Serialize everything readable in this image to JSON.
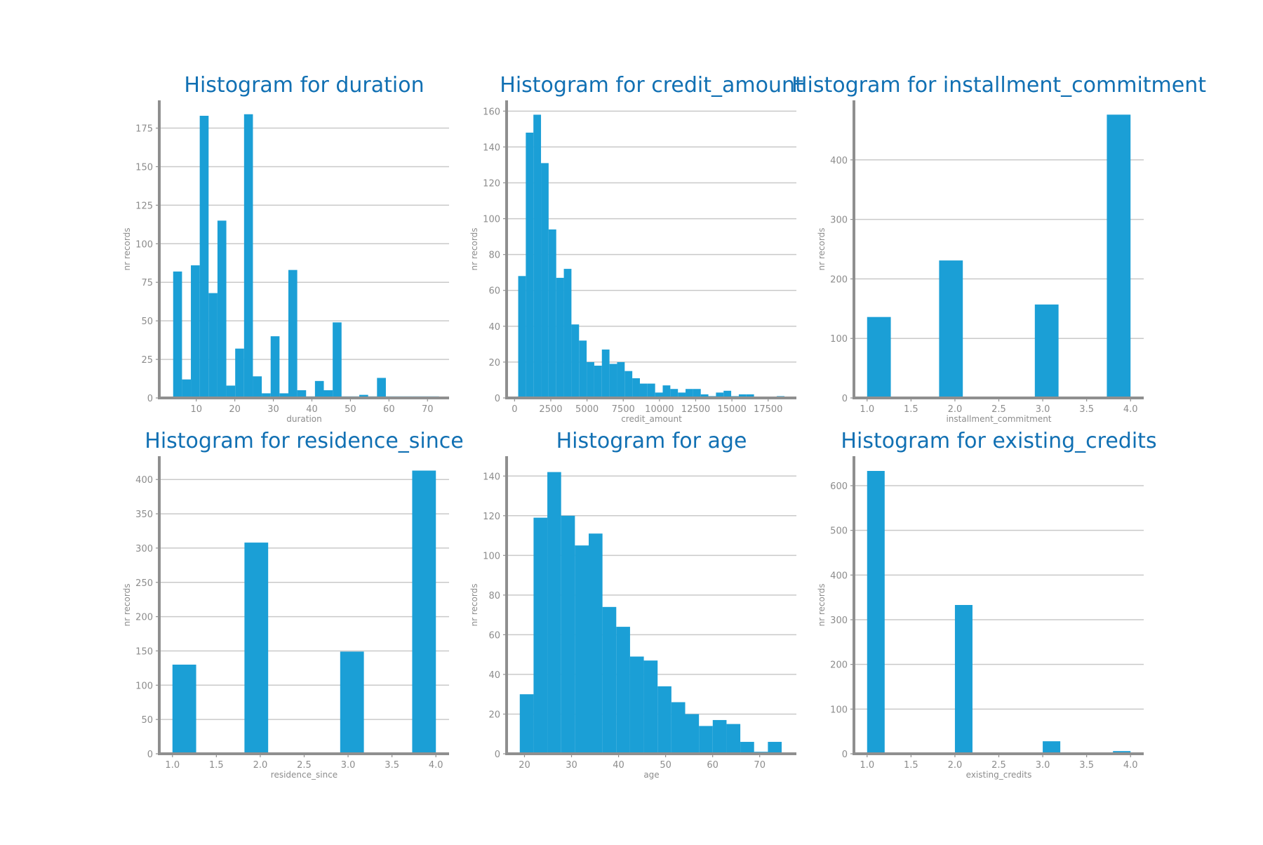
{
  "colors": {
    "bar": "#1b9fd6",
    "title": "#1170b3",
    "text": "#8c8c8c",
    "grid": "#c9c9c9",
    "spine": "#8f8f8f"
  },
  "chart_data": [
    {
      "type": "bar",
      "title": "Histogram for duration",
      "xlabel": "duration",
      "ylabel": "nr records",
      "xlim": [
        0.4,
        75.6
      ],
      "ylim": [
        0,
        193
      ],
      "xticks": [
        10,
        20,
        30,
        40,
        50,
        60,
        70
      ],
      "xtick_labels": [
        "10",
        "20",
        "30",
        "40",
        "50",
        "60",
        "70"
      ],
      "yticks": [
        0,
        25,
        50,
        75,
        100,
        125,
        150,
        175
      ],
      "bins": [
        {
          "x0": 4.0,
          "x1": 6.3,
          "count": 82
        },
        {
          "x0": 6.3,
          "x1": 8.6,
          "count": 12
        },
        {
          "x0": 8.6,
          "x1": 10.9,
          "count": 86
        },
        {
          "x0": 10.9,
          "x1": 13.2,
          "count": 183
        },
        {
          "x0": 13.2,
          "x1": 15.5,
          "count": 68
        },
        {
          "x0": 15.5,
          "x1": 17.8,
          "count": 115
        },
        {
          "x0": 17.8,
          "x1": 20.1,
          "count": 8
        },
        {
          "x0": 20.1,
          "x1": 22.4,
          "count": 32
        },
        {
          "x0": 22.4,
          "x1": 24.7,
          "count": 184
        },
        {
          "x0": 24.7,
          "x1": 27.0,
          "count": 14
        },
        {
          "x0": 27.0,
          "x1": 29.3,
          "count": 3
        },
        {
          "x0": 29.3,
          "x1": 31.6,
          "count": 40
        },
        {
          "x0": 31.6,
          "x1": 33.9,
          "count": 3
        },
        {
          "x0": 33.9,
          "x1": 36.2,
          "count": 83
        },
        {
          "x0": 36.2,
          "x1": 38.5,
          "count": 5
        },
        {
          "x0": 38.5,
          "x1": 40.8,
          "count": 1
        },
        {
          "x0": 40.8,
          "x1": 43.1,
          "count": 11
        },
        {
          "x0": 43.1,
          "x1": 45.4,
          "count": 5
        },
        {
          "x0": 45.4,
          "x1": 47.7,
          "count": 49
        },
        {
          "x0": 47.7,
          "x1": 50.0,
          "count": 1
        },
        {
          "x0": 50.0,
          "x1": 52.3,
          "count": 1
        },
        {
          "x0": 52.3,
          "x1": 54.6,
          "count": 2
        },
        {
          "x0": 54.6,
          "x1": 56.9,
          "count": 1
        },
        {
          "x0": 56.9,
          "x1": 59.2,
          "count": 13
        },
        {
          "x0": 59.2,
          "x1": 61.5,
          "count": 1
        },
        {
          "x0": 61.5,
          "x1": 63.8,
          "count": 1
        },
        {
          "x0": 63.8,
          "x1": 66.1,
          "count": 1
        },
        {
          "x0": 66.1,
          "x1": 68.4,
          "count": 1
        },
        {
          "x0": 68.4,
          "x1": 70.7,
          "count": 1
        },
        {
          "x0": 70.7,
          "x1": 73.0,
          "count": 1
        }
      ]
    },
    {
      "type": "bar",
      "title": "Histogram for credit_amount",
      "xlabel": "credit_amount",
      "ylabel": "nr records",
      "xlim": [
        -550,
        19450
      ],
      "ylim": [
        0,
        166
      ],
      "xticks": [
        0,
        2500,
        5000,
        7500,
        10000,
        12500,
        15000,
        17500
      ],
      "xtick_labels": [
        "0",
        "2500",
        "5000",
        "7500",
        "10000",
        "12500",
        "15000",
        "17500"
      ],
      "yticks": [
        0,
        20,
        40,
        60,
        80,
        100,
        120,
        140,
        160
      ],
      "bins": [
        {
          "x0": 250,
          "x1": 775,
          "count": 68
        },
        {
          "x0": 775,
          "x1": 1300,
          "count": 148
        },
        {
          "x0": 1300,
          "x1": 1825,
          "count": 158
        },
        {
          "x0": 1825,
          "x1": 2350,
          "count": 131
        },
        {
          "x0": 2350,
          "x1": 2875,
          "count": 94
        },
        {
          "x0": 2875,
          "x1": 3400,
          "count": 67
        },
        {
          "x0": 3400,
          "x1": 3925,
          "count": 72
        },
        {
          "x0": 3925,
          "x1": 4450,
          "count": 41
        },
        {
          "x0": 4450,
          "x1": 4975,
          "count": 32
        },
        {
          "x0": 4975,
          "x1": 5500,
          "count": 20
        },
        {
          "x0": 5500,
          "x1": 6025,
          "count": 18
        },
        {
          "x0": 6025,
          "x1": 6550,
          "count": 27
        },
        {
          "x0": 6550,
          "x1": 7075,
          "count": 19
        },
        {
          "x0": 7075,
          "x1": 7600,
          "count": 20
        },
        {
          "x0": 7600,
          "x1": 8125,
          "count": 15
        },
        {
          "x0": 8125,
          "x1": 8650,
          "count": 11
        },
        {
          "x0": 8650,
          "x1": 9175,
          "count": 8
        },
        {
          "x0": 9175,
          "x1": 9700,
          "count": 8
        },
        {
          "x0": 9700,
          "x1": 10225,
          "count": 3
        },
        {
          "x0": 10225,
          "x1": 10750,
          "count": 7
        },
        {
          "x0": 10750,
          "x1": 11275,
          "count": 5
        },
        {
          "x0": 11275,
          "x1": 11800,
          "count": 3
        },
        {
          "x0": 11800,
          "x1": 12325,
          "count": 5
        },
        {
          "x0": 12325,
          "x1": 12850,
          "count": 5
        },
        {
          "x0": 12850,
          "x1": 13375,
          "count": 2
        },
        {
          "x0": 13375,
          "x1": 13900,
          "count": 1
        },
        {
          "x0": 13900,
          "x1": 14425,
          "count": 3
        },
        {
          "x0": 14425,
          "x1": 14950,
          "count": 4
        },
        {
          "x0": 14950,
          "x1": 15475,
          "count": 1
        },
        {
          "x0": 15475,
          "x1": 16000,
          "count": 2
        },
        {
          "x0": 16000,
          "x1": 16525,
          "count": 2
        },
        {
          "x0": 16525,
          "x1": 17050,
          "count": 0
        },
        {
          "x0": 17050,
          "x1": 17575,
          "count": 0
        },
        {
          "x0": 17575,
          "x1": 18100,
          "count": 0
        },
        {
          "x0": 18100,
          "x1": 18625,
          "count": 1
        }
      ]
    },
    {
      "type": "bar",
      "title": "Histogram for installment_commitment",
      "xlabel": "installment_commitment",
      "ylabel": "nr records",
      "xlim": [
        0.85,
        4.15
      ],
      "ylim": [
        0,
        500
      ],
      "xticks": [
        1.0,
        1.5,
        2.0,
        2.5,
        3.0,
        3.5,
        4.0
      ],
      "xtick_labels": [
        "1.0",
        "1.5",
        "2.0",
        "2.5",
        "3.0",
        "3.5",
        "4.0"
      ],
      "yticks": [
        0,
        100,
        200,
        300,
        400
      ],
      "bins": [
        {
          "x0": 1.0,
          "x1": 1.27,
          "count": 136
        },
        {
          "x0": 1.82,
          "x1": 2.09,
          "count": 231
        },
        {
          "x0": 2.91,
          "x1": 3.18,
          "count": 157
        },
        {
          "x0": 3.73,
          "x1": 4.0,
          "count": 476
        }
      ]
    },
    {
      "type": "bar",
      "title": "Histogram for residence_since",
      "xlabel": "residence_since",
      "ylabel": "nr records",
      "xlim": [
        0.85,
        4.15
      ],
      "ylim": [
        0,
        434
      ],
      "xticks": [
        1.0,
        1.5,
        2.0,
        2.5,
        3.0,
        3.5,
        4.0
      ],
      "xtick_labels": [
        "1.0",
        "1.5",
        "2.0",
        "2.5",
        "3.0",
        "3.5",
        "4.0"
      ],
      "yticks": [
        0,
        50,
        100,
        150,
        200,
        250,
        300,
        350,
        400
      ],
      "bins": [
        {
          "x0": 1.0,
          "x1": 1.27,
          "count": 130
        },
        {
          "x0": 1.82,
          "x1": 2.09,
          "count": 308
        },
        {
          "x0": 2.91,
          "x1": 3.18,
          "count": 149
        },
        {
          "x0": 3.73,
          "x1": 4.0,
          "count": 413
        }
      ]
    },
    {
      "type": "bar",
      "title": "Histogram for age",
      "xlabel": "age",
      "ylabel": "nr records",
      "xlim": [
        16.2,
        77.8
      ],
      "ylim": [
        0,
        150
      ],
      "xticks": [
        20,
        30,
        40,
        50,
        60,
        70
      ],
      "xtick_labels": [
        "20",
        "30",
        "40",
        "50",
        "60",
        "70"
      ],
      "yticks": [
        0,
        20,
        40,
        60,
        80,
        100,
        120,
        140
      ],
      "bins": [
        {
          "x0": 19.0,
          "x1": 21.93,
          "count": 30
        },
        {
          "x0": 21.93,
          "x1": 24.86,
          "count": 119
        },
        {
          "x0": 24.86,
          "x1": 27.79,
          "count": 142
        },
        {
          "x0": 27.79,
          "x1": 30.72,
          "count": 120
        },
        {
          "x0": 30.72,
          "x1": 33.65,
          "count": 105
        },
        {
          "x0": 33.65,
          "x1": 36.58,
          "count": 111
        },
        {
          "x0": 36.58,
          "x1": 39.51,
          "count": 74
        },
        {
          "x0": 39.51,
          "x1": 42.44,
          "count": 64
        },
        {
          "x0": 42.44,
          "x1": 45.37,
          "count": 49
        },
        {
          "x0": 45.37,
          "x1": 48.3,
          "count": 47
        },
        {
          "x0": 48.3,
          "x1": 51.23,
          "count": 34
        },
        {
          "x0": 51.23,
          "x1": 54.16,
          "count": 26
        },
        {
          "x0": 54.16,
          "x1": 57.09,
          "count": 20
        },
        {
          "x0": 57.09,
          "x1": 60.02,
          "count": 14
        },
        {
          "x0": 60.02,
          "x1": 62.95,
          "count": 17
        },
        {
          "x0": 62.95,
          "x1": 65.88,
          "count": 15
        },
        {
          "x0": 65.88,
          "x1": 68.81,
          "count": 6
        },
        {
          "x0": 68.81,
          "x1": 71.74,
          "count": 1
        },
        {
          "x0": 71.74,
          "x1": 74.67,
          "count": 6
        }
      ]
    },
    {
      "type": "bar",
      "title": "Histogram for existing_credits",
      "xlabel": "existing_credits",
      "ylabel": "nr records",
      "xlim": [
        0.85,
        4.15
      ],
      "ylim": [
        0,
        666
      ],
      "xticks": [
        1.0,
        1.5,
        2.0,
        2.5,
        3.0,
        3.5,
        4.0
      ],
      "xtick_labels": [
        "1.0",
        "1.5",
        "2.0",
        "2.5",
        "3.0",
        "3.5",
        "4.0"
      ],
      "yticks": [
        0,
        100,
        200,
        300,
        400,
        500,
        600
      ],
      "bins": [
        {
          "x0": 1.0,
          "x1": 1.2,
          "count": 633
        },
        {
          "x0": 2.0,
          "x1": 2.2,
          "count": 333
        },
        {
          "x0": 3.0,
          "x1": 3.2,
          "count": 28
        },
        {
          "x0": 3.8,
          "x1": 4.0,
          "count": 6
        }
      ]
    }
  ]
}
